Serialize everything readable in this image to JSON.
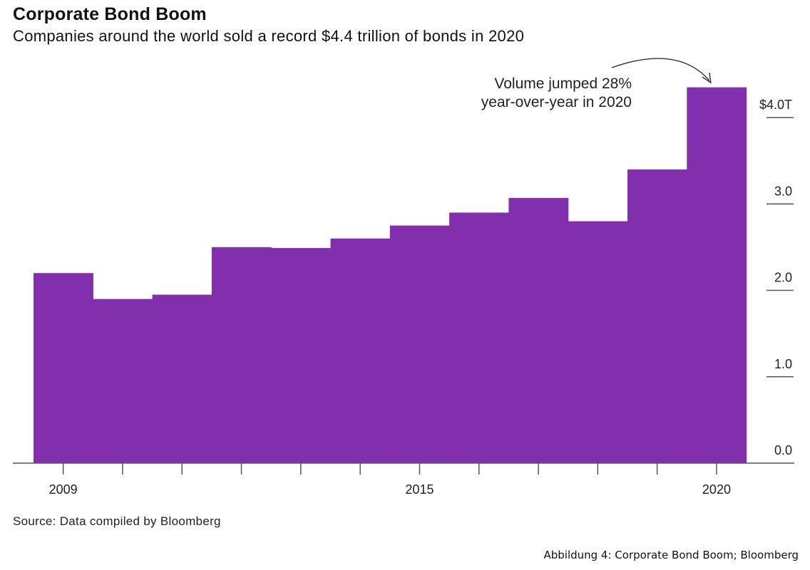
{
  "chart_data": {
    "type": "bar",
    "title": "Corporate Bond Boom",
    "subtitle": "Companies around the world sold a record $4.4 trillion of bonds in 2020",
    "source": "Source: Data compiled by Bloomberg",
    "categories": [
      "2009",
      "2010",
      "2011",
      "2012",
      "2013",
      "2014",
      "2015",
      "2016",
      "2017",
      "2018",
      "2019",
      "2020"
    ],
    "values": [
      2.2,
      1.9,
      1.95,
      2.5,
      2.49,
      2.6,
      2.75,
      2.9,
      3.07,
      2.8,
      3.4,
      4.35
    ],
    "ylim": [
      0,
      4.4
    ],
    "y_ticks": [
      {
        "value": 0,
        "label": "0.0"
      },
      {
        "value": 1,
        "label": "1.0"
      },
      {
        "value": 2,
        "label": "2.0"
      },
      {
        "value": 3,
        "label": "3.0"
      },
      {
        "value": 4,
        "label": "$4.0T"
      }
    ],
    "x_tick_labels": [
      {
        "index": 0,
        "label": "2009"
      },
      {
        "index": 6,
        "label": "2015"
      },
      {
        "index": 11,
        "label": "2020"
      }
    ],
    "annotation": {
      "lines": [
        "Volume jumped 28%",
        "year-over-year in 2020"
      ],
      "target_index": 11
    },
    "bar_color": "#822fae",
    "axis": "right",
    "grid": false
  },
  "figure_caption": "Abbildung 4: Corporate Bond Boom; Bloomberg"
}
